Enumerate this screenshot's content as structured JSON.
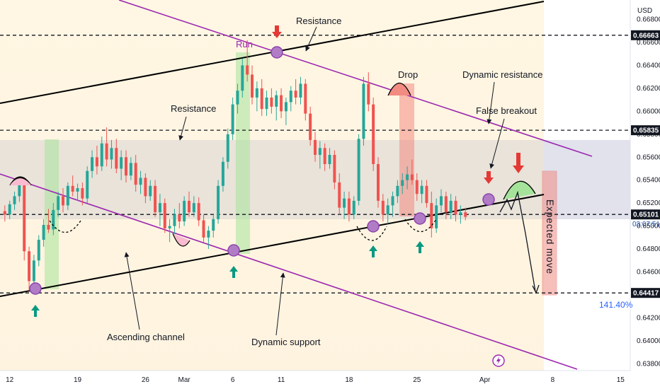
{
  "chart_data": {
    "type": "candlestick",
    "currency": "USD",
    "y_ticks": [
      0.638,
      0.64,
      0.642,
      0.644,
      0.646,
      0.648,
      0.65,
      0.652,
      0.654,
      0.656,
      0.658,
      0.66,
      0.662,
      0.664,
      0.666,
      0.668
    ],
    "ylim": [
      0.6374,
      0.6697
    ],
    "x_ticks": [
      {
        "label": "12",
        "day": 12
      },
      {
        "label": "19",
        "day": 19
      },
      {
        "label": "26",
        "day": 26
      },
      {
        "label": "Mar",
        "day": 30
      },
      {
        "label": "6",
        "day": 35
      },
      {
        "label": "11",
        "day": 40
      },
      {
        "label": "18",
        "day": 47
      },
      {
        "label": "25",
        "day": 54
      },
      {
        "label": "Apr",
        "day": 61
      },
      {
        "label": "8",
        "day": 68
      },
      {
        "label": "15",
        "day": 75
      }
    ],
    "xlim": [
      11,
      76
    ],
    "levels": [
      {
        "value": 0.66663,
        "label": "0.66663"
      },
      {
        "value": 0.65835,
        "label": "0.65835"
      },
      {
        "value": 0.65101,
        "label": "0.65101"
      },
      {
        "value": 0.64417,
        "label": "0.64417"
      }
    ],
    "current_price": {
      "value": 0.65101,
      "label": "0.65101",
      "countdown": "03:07:51"
    },
    "percent_label": "141.40%",
    "annotations": {
      "resistance_top": "Resistance",
      "resistance_mid": "Resistance",
      "run": "Run",
      "drop": "Drop",
      "dynamic_resistance": "Dynamic resistance",
      "false_breakout": "False breakout",
      "ascending_channel": "Ascending channel",
      "dynamic_support": "Dynamic support",
      "expected_move": "Expected move"
    },
    "colors": {
      "up": "#26a69a",
      "down": "#ef5350",
      "channel": "#000000",
      "dynamic": "#9c27b0",
      "support_arrow": "#089981",
      "resistance_arrow": "#e53935"
    },
    "candles_daily": [
      {
        "day": 11.5,
        "o": 0.6513,
        "h": 0.6518,
        "l": 0.6504,
        "c": 0.651
      },
      {
        "day": 12.0,
        "o": 0.651,
        "h": 0.6522,
        "l": 0.6506,
        "c": 0.6519
      },
      {
        "day": 12.5,
        "o": 0.6519,
        "h": 0.653,
        "l": 0.6514,
        "c": 0.6526
      },
      {
        "day": 13.0,
        "o": 0.6526,
        "h": 0.6541,
        "l": 0.6521,
        "c": 0.6536
      },
      {
        "day": 13.5,
        "o": 0.6536,
        "h": 0.654,
        "l": 0.647,
        "c": 0.6478
      },
      {
        "day": 14.0,
        "o": 0.6478,
        "h": 0.6482,
        "l": 0.6444,
        "c": 0.6452
      },
      {
        "day": 14.5,
        "o": 0.6452,
        "h": 0.6475,
        "l": 0.6446,
        "c": 0.647
      },
      {
        "day": 15.0,
        "o": 0.647,
        "h": 0.6492,
        "l": 0.6465,
        "c": 0.6488
      },
      {
        "day": 15.5,
        "o": 0.6488,
        "h": 0.6506,
        "l": 0.6482,
        "c": 0.6501
      },
      {
        "day": 16.0,
        "o": 0.6501,
        "h": 0.6515,
        "l": 0.6494,
        "c": 0.6497
      },
      {
        "day": 16.5,
        "o": 0.6497,
        "h": 0.652,
        "l": 0.6492,
        "c": 0.6514
      },
      {
        "day": 17.0,
        "o": 0.6514,
        "h": 0.653,
        "l": 0.6508,
        "c": 0.6526
      },
      {
        "day": 17.5,
        "o": 0.6526,
        "h": 0.6533,
        "l": 0.6512,
        "c": 0.6518
      },
      {
        "day": 18.0,
        "o": 0.6518,
        "h": 0.6538,
        "l": 0.6514,
        "c": 0.6535
      },
      {
        "day": 18.5,
        "o": 0.6535,
        "h": 0.6544,
        "l": 0.6526,
        "c": 0.653
      },
      {
        "day": 19.0,
        "o": 0.653,
        "h": 0.6537,
        "l": 0.6522,
        "c": 0.6533
      },
      {
        "day": 19.5,
        "o": 0.6533,
        "h": 0.6538,
        "l": 0.6518,
        "c": 0.6524
      },
      {
        "day": 20.0,
        "o": 0.6524,
        "h": 0.6552,
        "l": 0.652,
        "c": 0.6548
      },
      {
        "day": 20.5,
        "o": 0.6548,
        "h": 0.6566,
        "l": 0.6542,
        "c": 0.656
      },
      {
        "day": 21.0,
        "o": 0.656,
        "h": 0.657,
        "l": 0.6545,
        "c": 0.6552
      },
      {
        "day": 21.5,
        "o": 0.6552,
        "h": 0.6578,
        "l": 0.6548,
        "c": 0.6572
      },
      {
        "day": 22.0,
        "o": 0.6572,
        "h": 0.6586,
        "l": 0.6552,
        "c": 0.6558
      },
      {
        "day": 22.5,
        "o": 0.6558,
        "h": 0.6575,
        "l": 0.655,
        "c": 0.6568
      },
      {
        "day": 23.0,
        "o": 0.6568,
        "h": 0.6576,
        "l": 0.6546,
        "c": 0.655
      },
      {
        "day": 23.5,
        "o": 0.655,
        "h": 0.6566,
        "l": 0.654,
        "c": 0.656
      },
      {
        "day": 24.0,
        "o": 0.656,
        "h": 0.6566,
        "l": 0.6538,
        "c": 0.6544
      },
      {
        "day": 24.5,
        "o": 0.6544,
        "h": 0.656,
        "l": 0.654,
        "c": 0.6555
      },
      {
        "day": 25.0,
        "o": 0.6555,
        "h": 0.6562,
        "l": 0.653,
        "c": 0.6536
      },
      {
        "day": 25.5,
        "o": 0.6536,
        "h": 0.6548,
        "l": 0.6528,
        "c": 0.6542
      },
      {
        "day": 26.0,
        "o": 0.6542,
        "h": 0.6546,
        "l": 0.652,
        "c": 0.6526
      },
      {
        "day": 26.5,
        "o": 0.6526,
        "h": 0.654,
        "l": 0.6522,
        "c": 0.6535
      },
      {
        "day": 27.0,
        "o": 0.6535,
        "h": 0.654,
        "l": 0.6508,
        "c": 0.6512
      },
      {
        "day": 27.5,
        "o": 0.6512,
        "h": 0.6528,
        "l": 0.65,
        "c": 0.652
      },
      {
        "day": 28.0,
        "o": 0.652,
        "h": 0.6524,
        "l": 0.6494,
        "c": 0.6498
      },
      {
        "day": 28.5,
        "o": 0.6498,
        "h": 0.6506,
        "l": 0.6486,
        "c": 0.65
      },
      {
        "day": 29.0,
        "o": 0.65,
        "h": 0.6515,
        "l": 0.6492,
        "c": 0.651
      },
      {
        "day": 29.5,
        "o": 0.651,
        "h": 0.652,
        "l": 0.6498,
        "c": 0.6504
      },
      {
        "day": 30.0,
        "o": 0.6504,
        "h": 0.6526,
        "l": 0.65,
        "c": 0.6522
      },
      {
        "day": 30.5,
        "o": 0.6522,
        "h": 0.653,
        "l": 0.6508,
        "c": 0.6512
      },
      {
        "day": 31.0,
        "o": 0.6512,
        "h": 0.6526,
        "l": 0.6508,
        "c": 0.652
      },
      {
        "day": 31.5,
        "o": 0.652,
        "h": 0.6525,
        "l": 0.65,
        "c": 0.6505
      },
      {
        "day": 32.0,
        "o": 0.6505,
        "h": 0.651,
        "l": 0.6486,
        "c": 0.649
      },
      {
        "day": 32.5,
        "o": 0.649,
        "h": 0.65,
        "l": 0.648,
        "c": 0.6496
      },
      {
        "day": 33.0,
        "o": 0.6496,
        "h": 0.651,
        "l": 0.649,
        "c": 0.6506
      },
      {
        "day": 33.5,
        "o": 0.6506,
        "h": 0.654,
        "l": 0.6502,
        "c": 0.6535
      },
      {
        "day": 34.0,
        "o": 0.6535,
        "h": 0.656,
        "l": 0.653,
        "c": 0.6556
      },
      {
        "day": 34.5,
        "o": 0.6556,
        "h": 0.6585,
        "l": 0.655,
        "c": 0.658
      },
      {
        "day": 35.0,
        "o": 0.658,
        "h": 0.6612,
        "l": 0.6575,
        "c": 0.6606
      },
      {
        "day": 35.5,
        "o": 0.6606,
        "h": 0.6624,
        "l": 0.6598,
        "c": 0.6618
      },
      {
        "day": 36.0,
        "o": 0.6618,
        "h": 0.6646,
        "l": 0.6612,
        "c": 0.664
      },
      {
        "day": 36.5,
        "o": 0.664,
        "h": 0.6662,
        "l": 0.6626,
        "c": 0.6632
      },
      {
        "day": 37.0,
        "o": 0.6632,
        "h": 0.664,
        "l": 0.6606,
        "c": 0.6612
      },
      {
        "day": 37.5,
        "o": 0.6612,
        "h": 0.6626,
        "l": 0.66,
        "c": 0.662
      },
      {
        "day": 38.0,
        "o": 0.662,
        "h": 0.6628,
        "l": 0.6596,
        "c": 0.6602
      },
      {
        "day": 38.5,
        "o": 0.6602,
        "h": 0.6618,
        "l": 0.6596,
        "c": 0.6612
      },
      {
        "day": 39.0,
        "o": 0.6612,
        "h": 0.662,
        "l": 0.6598,
        "c": 0.6604
      },
      {
        "day": 39.5,
        "o": 0.6604,
        "h": 0.6618,
        "l": 0.6592,
        "c": 0.6614
      },
      {
        "day": 40.0,
        "o": 0.6614,
        "h": 0.662,
        "l": 0.6594,
        "c": 0.66
      },
      {
        "day": 40.5,
        "o": 0.66,
        "h": 0.6612,
        "l": 0.6588,
        "c": 0.6608
      },
      {
        "day": 41.0,
        "o": 0.6608,
        "h": 0.6622,
        "l": 0.66,
        "c": 0.6618
      },
      {
        "day": 41.5,
        "o": 0.6618,
        "h": 0.6628,
        "l": 0.6606,
        "c": 0.6612
      },
      {
        "day": 42.0,
        "o": 0.6612,
        "h": 0.663,
        "l": 0.6606,
        "c": 0.6624
      },
      {
        "day": 42.5,
        "o": 0.6624,
        "h": 0.6628,
        "l": 0.6592,
        "c": 0.6598
      },
      {
        "day": 43.0,
        "o": 0.6598,
        "h": 0.6604,
        "l": 0.657,
        "c": 0.6575
      },
      {
        "day": 43.5,
        "o": 0.6575,
        "h": 0.6582,
        "l": 0.6556,
        "c": 0.6562
      },
      {
        "day": 44.0,
        "o": 0.6562,
        "h": 0.6574,
        "l": 0.655,
        "c": 0.6568
      },
      {
        "day": 44.5,
        "o": 0.6568,
        "h": 0.6572,
        "l": 0.6548,
        "c": 0.6554
      },
      {
        "day": 45.0,
        "o": 0.6554,
        "h": 0.6568,
        "l": 0.655,
        "c": 0.6562
      },
      {
        "day": 45.5,
        "o": 0.6562,
        "h": 0.6566,
        "l": 0.6532,
        "c": 0.6538
      },
      {
        "day": 46.0,
        "o": 0.6538,
        "h": 0.6546,
        "l": 0.651,
        "c": 0.6516
      },
      {
        "day": 46.5,
        "o": 0.6516,
        "h": 0.653,
        "l": 0.6506,
        "c": 0.6524
      },
      {
        "day": 47.0,
        "o": 0.6524,
        "h": 0.653,
        "l": 0.6504,
        "c": 0.651
      },
      {
        "day": 47.5,
        "o": 0.651,
        "h": 0.6526,
        "l": 0.6506,
        "c": 0.6522
      },
      {
        "day": 48.0,
        "o": 0.6522,
        "h": 0.658,
        "l": 0.6518,
        "c": 0.6576
      },
      {
        "day": 48.5,
        "o": 0.6576,
        "h": 0.663,
        "l": 0.657,
        "c": 0.6624
      },
      {
        "day": 49.0,
        "o": 0.6624,
        "h": 0.6634,
        "l": 0.66,
        "c": 0.6606
      },
      {
        "day": 49.5,
        "o": 0.6606,
        "h": 0.6612,
        "l": 0.6548,
        "c": 0.6554
      },
      {
        "day": 50.0,
        "o": 0.6554,
        "h": 0.656,
        "l": 0.6516,
        "c": 0.6522
      },
      {
        "day": 50.5,
        "o": 0.6522,
        "h": 0.6528,
        "l": 0.6504,
        "c": 0.651
      },
      {
        "day": 51.0,
        "o": 0.651,
        "h": 0.6524,
        "l": 0.6502,
        "c": 0.6518
      },
      {
        "day": 51.5,
        "o": 0.6518,
        "h": 0.653,
        "l": 0.6508,
        "c": 0.6526
      },
      {
        "day": 52.0,
        "o": 0.6526,
        "h": 0.654,
        "l": 0.652,
        "c": 0.6535
      },
      {
        "day": 52.5,
        "o": 0.6535,
        "h": 0.6546,
        "l": 0.6528,
        "c": 0.654
      },
      {
        "day": 53.0,
        "o": 0.654,
        "h": 0.6552,
        "l": 0.6532,
        "c": 0.6545
      },
      {
        "day": 53.5,
        "o": 0.6545,
        "h": 0.6558,
        "l": 0.6536,
        "c": 0.654
      },
      {
        "day": 54.0,
        "o": 0.654,
        "h": 0.6546,
        "l": 0.6522,
        "c": 0.6528
      },
      {
        "day": 54.5,
        "o": 0.6528,
        "h": 0.654,
        "l": 0.652,
        "c": 0.6535
      },
      {
        "day": 55.0,
        "o": 0.6535,
        "h": 0.654,
        "l": 0.6516,
        "c": 0.652
      },
      {
        "day": 55.5,
        "o": 0.652,
        "h": 0.653,
        "l": 0.649,
        "c": 0.6498
      },
      {
        "day": 56.0,
        "o": 0.6498,
        "h": 0.6524,
        "l": 0.6494,
        "c": 0.6518
      },
      {
        "day": 56.5,
        "o": 0.6518,
        "h": 0.6532,
        "l": 0.6512,
        "c": 0.6526
      },
      {
        "day": 57.0,
        "o": 0.6526,
        "h": 0.653,
        "l": 0.6506,
        "c": 0.6512
      },
      {
        "day": 57.5,
        "o": 0.6512,
        "h": 0.6528,
        "l": 0.6506,
        "c": 0.6522
      },
      {
        "day": 58.0,
        "o": 0.6522,
        "h": 0.6526,
        "l": 0.6504,
        "c": 0.651
      },
      {
        "day": 58.5,
        "o": 0.651,
        "h": 0.6518,
        "l": 0.6502,
        "c": 0.6512
      },
      {
        "day": 59.0,
        "o": 0.6512,
        "h": 0.6516,
        "l": 0.6505,
        "c": 0.6508
      }
    ]
  }
}
